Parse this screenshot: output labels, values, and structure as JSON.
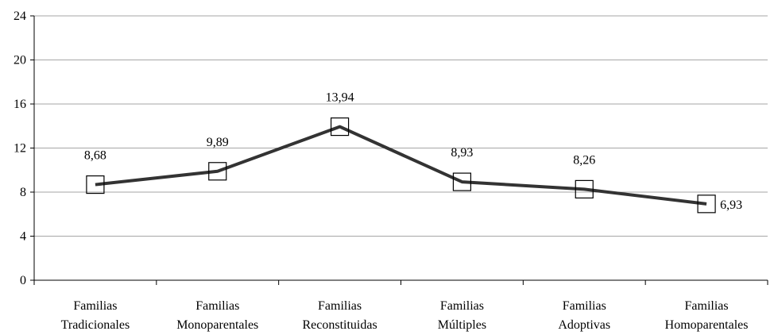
{
  "chart_data": {
    "type": "line",
    "title": "",
    "xlabel": "",
    "ylabel": "",
    "categories": [
      [
        "Familias",
        "Tradicionales"
      ],
      [
        "Familias",
        "Monoparentales"
      ],
      [
        "Familias",
        "Reconstituidas"
      ],
      [
        "Familias",
        "Múltiples"
      ],
      [
        "Familias",
        "Adoptivas"
      ],
      [
        "Familias",
        "Homoparentales"
      ]
    ],
    "series": [
      {
        "values": [
          8.68,
          9.89,
          13.94,
          8.93,
          8.26,
          6.93
        ],
        "labels": [
          "8,68",
          "9,89",
          "13,94",
          "8,93",
          "8,26",
          "6,93"
        ]
      }
    ],
    "ylim": [
      0,
      24
    ],
    "yticks": [
      0,
      4,
      8,
      12,
      16,
      20,
      24
    ],
    "grid": true,
    "legend": "none",
    "colors": {
      "line": "#333333",
      "grid": "#a6a6a6",
      "axis": "#000000",
      "marker_fill": "#ffffff"
    }
  }
}
